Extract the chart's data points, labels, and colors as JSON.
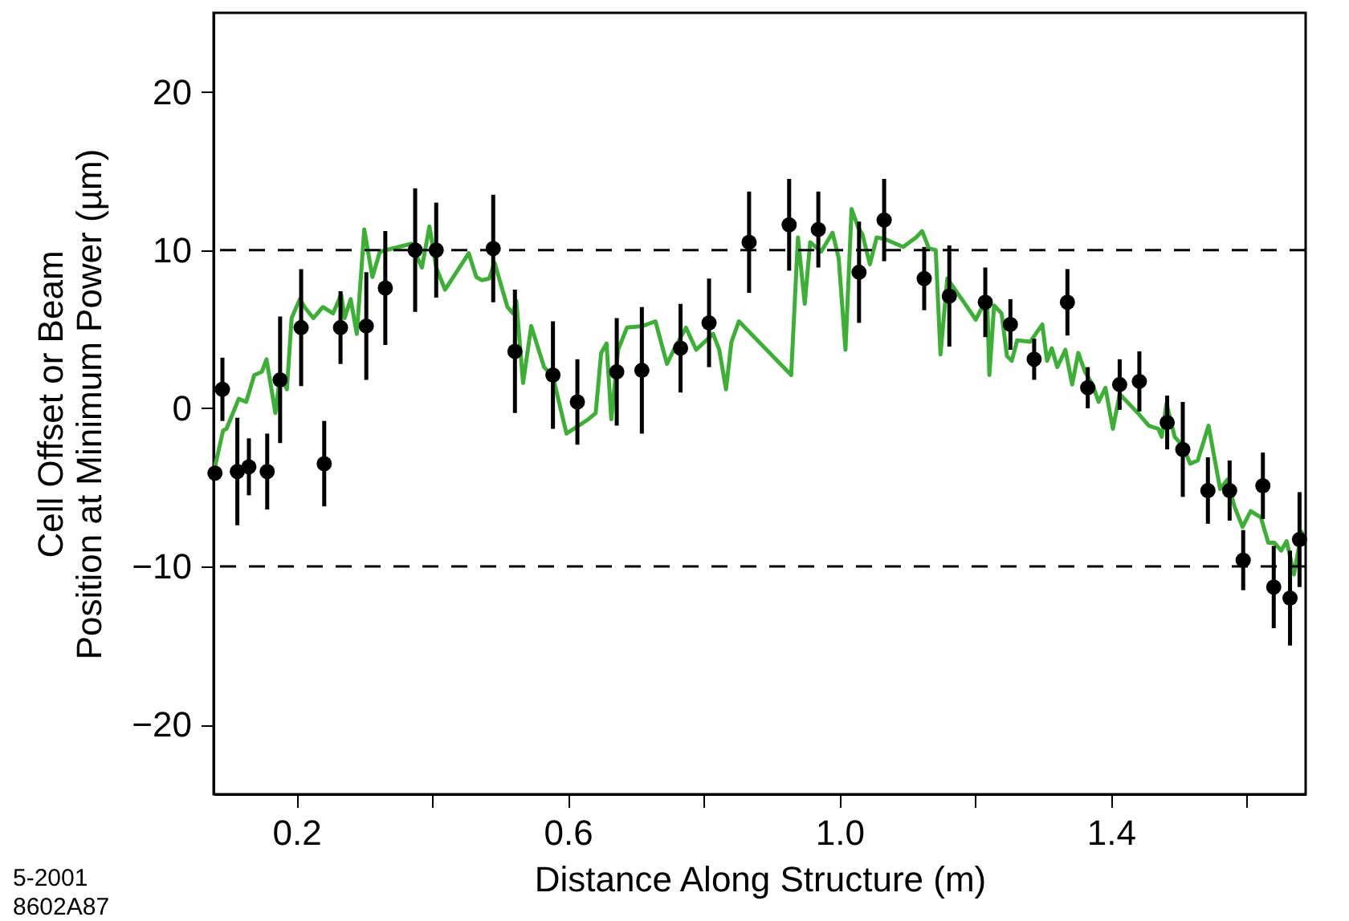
{
  "chart_data": {
    "type": "scatter",
    "xlabel": "Distance Along Structure  (m)",
    "ylabel": "Cell Offset or Beam\nPosition at Minimum Power  (µm)",
    "annotations": [
      "5-2001",
      "8602A87"
    ],
    "xlim": [
      0.078,
      1.687
    ],
    "xticks": [
      {
        "value": 0.2,
        "label": "0.2"
      },
      {
        "value": 0.4,
        "label": null
      },
      {
        "value": 0.6,
        "label": "0.6"
      },
      {
        "value": 0.8,
        "label": null
      },
      {
        "value": 1.0,
        "label": "1.0"
      },
      {
        "value": 1.2,
        "label": null
      },
      {
        "value": 1.4,
        "label": "1.4"
      },
      {
        "value": 1.6,
        "label": null
      }
    ],
    "ylim": [
      -24.4,
      25
    ],
    "yticks": [
      {
        "value": -20,
        "label": "−20"
      },
      {
        "value": -10,
        "label": "−10"
      },
      0,
      10,
      20
    ],
    "grid": false,
    "ref_lines": [
      {
        "axis": "y",
        "value": 10,
        "line_style": "dashed",
        "color": "#000000"
      },
      {
        "axis": "y",
        "value": -10,
        "line_style": "dashed",
        "color": "#000000"
      }
    ],
    "series": [
      {
        "type": "line",
        "color": "#3cb034",
        "line_style": "solid",
        "marker": "none",
        "x": [
          0.08,
          0.092,
          0.097,
          0.115,
          0.126,
          0.138,
          0.149,
          0.156,
          0.169,
          0.176,
          0.186,
          0.193,
          0.205,
          0.212,
          0.225,
          0.239,
          0.254,
          0.266,
          0.271,
          0.28,
          0.289,
          0.3,
          0.312,
          0.323,
          0.369,
          0.385,
          0.396,
          0.406,
          0.419,
          0.454,
          0.465,
          0.473,
          0.484,
          0.492,
          0.511,
          0.519,
          0.524,
          0.534,
          0.546,
          0.565,
          0.578,
          0.598,
          0.63,
          0.641,
          0.649,
          0.657,
          0.664,
          0.674,
          0.687,
          0.71,
          0.729,
          0.746,
          0.756,
          0.774,
          0.789,
          0.814,
          0.823,
          0.833,
          0.841,
          0.852,
          0.929,
          0.939,
          0.949,
          0.957,
          0.973,
          0.99,
          0.999,
          1.009,
          1.018,
          1.028,
          1.034,
          1.045,
          1.055,
          1.067,
          1.094,
          1.113,
          1.122,
          1.132,
          1.142,
          1.149,
          1.159,
          1.182,
          1.201,
          1.208,
          1.218,
          1.221,
          1.228,
          1.239,
          1.247,
          1.254,
          1.262,
          1.281,
          1.299,
          1.306,
          1.313,
          1.321,
          1.333,
          1.343,
          1.352,
          1.362,
          1.373,
          1.382,
          1.392,
          1.403,
          1.413,
          1.442,
          1.456,
          1.47,
          1.475,
          1.482,
          1.494,
          1.506,
          1.517,
          1.528,
          1.544,
          1.561,
          1.572,
          1.582,
          1.594,
          1.606,
          1.621,
          1.632,
          1.641,
          1.651,
          1.659,
          1.67,
          1.681,
          1.687
        ],
        "values": [
          -3.7,
          -1.4,
          -1.3,
          0.6,
          0.4,
          2.1,
          2.3,
          3.1,
          -0.3,
          2.1,
          1.2,
          5.7,
          6.9,
          6.4,
          5.7,
          6.4,
          6.0,
          7.2,
          5.7,
          6.9,
          4.7,
          11.3,
          8.3,
          9.9,
          10.4,
          8.9,
          11.5,
          8.9,
          7.5,
          9.8,
          8.3,
          8.1,
          8.2,
          9.2,
          6.4,
          6.0,
          6.8,
          1.6,
          5.2,
          2.6,
          2.0,
          -1.6,
          -0.7,
          -0.3,
          3.5,
          4.1,
          -0.7,
          3.7,
          5.1,
          5.2,
          5.5,
          2.8,
          3.7,
          5.1,
          3.7,
          4.7,
          3.7,
          1.2,
          4.2,
          5.5,
          2.1,
          10.8,
          6.6,
          10.5,
          9.9,
          11.1,
          9.5,
          3.7,
          12.6,
          11.4,
          11.0,
          9.1,
          10.8,
          10.7,
          10.2,
          10.8,
          11.2,
          10.1,
          10.0,
          3.4,
          8.2,
          6.8,
          5.6,
          6.2,
          6.6,
          2.1,
          6.5,
          6.0,
          3.3,
          3.0,
          4.3,
          4.2,
          5.3,
          3.0,
          3.8,
          2.6,
          3.7,
          1.5,
          3.5,
          2.3,
          1.5,
          0.4,
          1.3,
          -1.3,
          0.9,
          -0.4,
          -1.1,
          -1.3,
          -1.8,
          0.3,
          -1.8,
          -2.4,
          -3.5,
          -3.3,
          -1.1,
          -5.1,
          -4.5,
          -6.2,
          -7.5,
          -6.5,
          -6.9,
          -8.5,
          -8.5,
          -9.0,
          -8.4,
          -10.5,
          -7.8,
          -8.4
        ]
      },
      {
        "type": "scatter",
        "color": "#000000",
        "marker": "circle",
        "x": [
          0.08,
          0.091,
          0.113,
          0.13,
          0.157,
          0.176,
          0.207,
          0.241,
          0.265,
          0.303,
          0.331,
          0.375,
          0.406,
          0.49,
          0.522,
          0.578,
          0.614,
          0.672,
          0.709,
          0.766,
          0.808,
          0.867,
          0.926,
          0.969,
          1.029,
          1.066,
          1.125,
          1.162,
          1.215,
          1.252,
          1.287,
          1.336,
          1.366,
          1.413,
          1.442,
          1.483,
          1.506,
          1.543,
          1.575,
          1.595,
          1.624,
          1.64,
          1.664,
          1.678
        ],
        "values": [
          -4.1,
          1.2,
          -4.0,
          -3.7,
          -4.0,
          1.8,
          5.1,
          -3.5,
          5.1,
          5.2,
          7.6,
          10.0,
          10.0,
          10.1,
          3.6,
          2.1,
          0.4,
          2.3,
          2.4,
          3.8,
          5.4,
          10.5,
          11.6,
          11.3,
          8.6,
          11.9,
          8.2,
          7.1,
          6.7,
          5.3,
          3.1,
          6.7,
          1.3,
          1.5,
          1.7,
          -0.9,
          -2.6,
          -5.2,
          -5.2,
          -9.6,
          -4.9,
          -11.3,
          -12.0,
          -8.3
        ],
        "errors": [
          null,
          2.0,
          3.4,
          1.8,
          2.4,
          4.0,
          3.7,
          2.7,
          2.3,
          3.4,
          3.6,
          3.9,
          3.0,
          3.4,
          3.9,
          3.4,
          2.7,
          3.4,
          4.0,
          2.8,
          2.8,
          3.2,
          2.9,
          2.4,
          3.2,
          2.6,
          2.0,
          3.2,
          2.2,
          1.6,
          1.3,
          2.1,
          1.3,
          1.6,
          1.9,
          1.7,
          3.0,
          2.1,
          1.9,
          1.9,
          2.1,
          2.6,
          3.0,
          3.0
        ]
      }
    ]
  }
}
